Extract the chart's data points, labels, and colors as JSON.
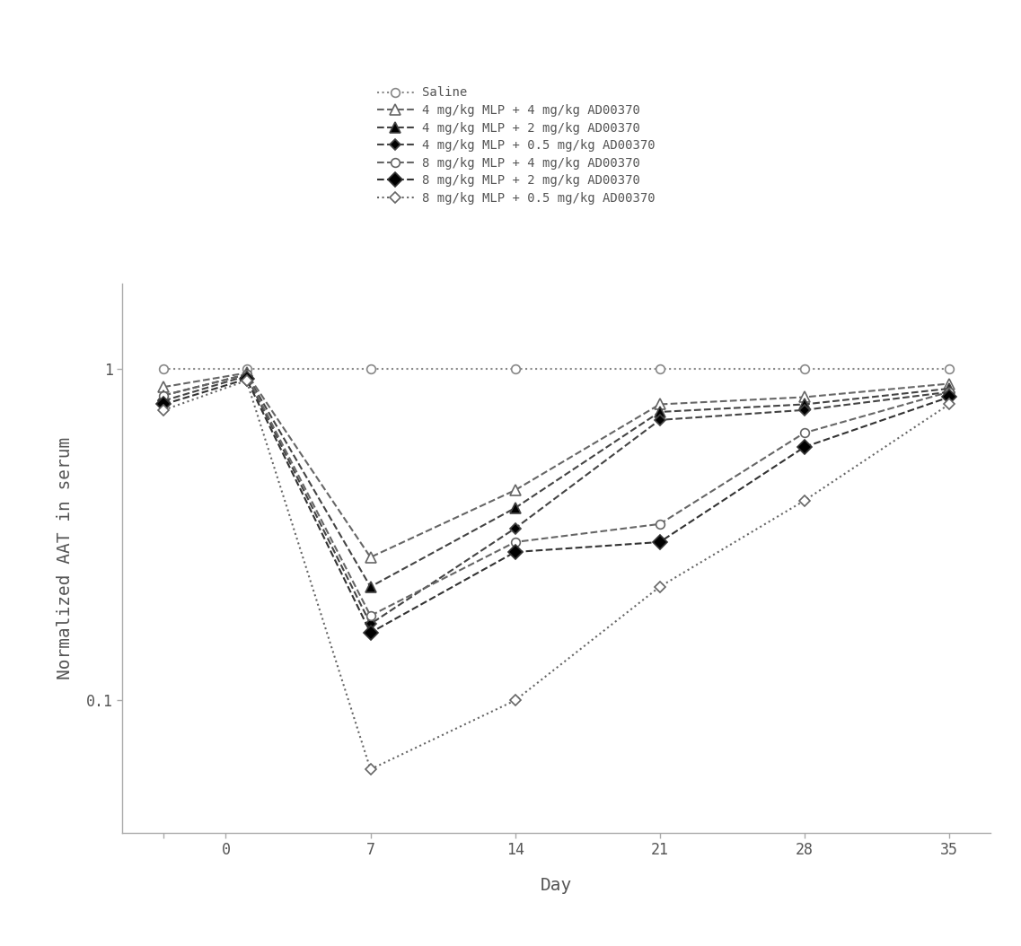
{
  "x_days": [
    -3,
    1,
    7,
    14,
    21,
    28,
    35
  ],
  "series": [
    {
      "label": "Saline",
      "y": [
        1.0,
        1.0,
        1.0,
        1.0,
        1.0,
        1.0,
        1.0
      ],
      "marker": "o",
      "marker_fill": "white",
      "linestyle": "dotted",
      "linewidth": 1.5,
      "color": "#888888",
      "markersize": 7
    },
    {
      "label": "4 mg/kg MLP + 4 mg/kg AD00370",
      "y": [
        0.88,
        0.97,
        0.27,
        0.43,
        0.78,
        0.82,
        0.9
      ],
      "marker": "^",
      "marker_fill": "white",
      "linestyle": "dashed",
      "linewidth": 1.5,
      "color": "#666666",
      "markersize": 8
    },
    {
      "label": "4 mg/kg MLP + 2 mg/kg AD00370",
      "y": [
        0.83,
        0.96,
        0.22,
        0.38,
        0.74,
        0.78,
        0.87
      ],
      "marker": "^",
      "marker_fill": "black",
      "linestyle": "dashed",
      "linewidth": 1.5,
      "color": "#444444",
      "markersize": 8
    },
    {
      "label": "4 mg/kg MLP + 0.5 mg/kg AD00370",
      "y": [
        0.8,
        0.95,
        0.17,
        0.33,
        0.7,
        0.75,
        0.85
      ],
      "marker": "D",
      "marker_fill": "black",
      "linestyle": "dashed",
      "linewidth": 1.5,
      "color": "#444444",
      "markersize": 6
    },
    {
      "label": "8 mg/kg MLP + 4 mg/kg AD00370",
      "y": [
        0.83,
        0.96,
        0.18,
        0.3,
        0.34,
        0.64,
        0.85
      ],
      "marker": "o",
      "marker_fill": "white",
      "linestyle": "dashed",
      "linewidth": 1.5,
      "color": "#666666",
      "markersize": 7
    },
    {
      "label": "8 mg/kg MLP + 2 mg/kg AD00370",
      "y": [
        0.78,
        0.93,
        0.16,
        0.28,
        0.3,
        0.58,
        0.82
      ],
      "marker": "D",
      "marker_fill": "black",
      "linestyle": "dashed",
      "linewidth": 1.5,
      "color": "#333333",
      "markersize": 8
    },
    {
      "label": "8 mg/kg MLP + 0.5 mg/kg AD00370",
      "y": [
        0.75,
        0.92,
        0.062,
        0.1,
        0.22,
        0.4,
        0.78
      ],
      "marker": "D",
      "marker_fill": "white",
      "linestyle": "dotted",
      "linewidth": 1.5,
      "color": "#666666",
      "markersize": 6
    }
  ],
  "xlabel": "Day",
  "ylabel": "Normalized AAT in serum",
  "xticks": [
    -3,
    0,
    7,
    14,
    21,
    28,
    35
  ],
  "xticklabels": [
    "",
    "0",
    "7",
    "14",
    "21",
    "28",
    "35"
  ],
  "ylim_log": [
    0.04,
    1.8
  ],
  "ytick_values": [
    0.1,
    1.0
  ],
  "ytick_labels": {
    "0.1": "0.1",
    "1.0": "1"
  },
  "background_color": "#ffffff",
  "font_color": "#555555",
  "legend_fontsize": 10,
  "axis_fontsize": 12,
  "label_fontsize": 14
}
